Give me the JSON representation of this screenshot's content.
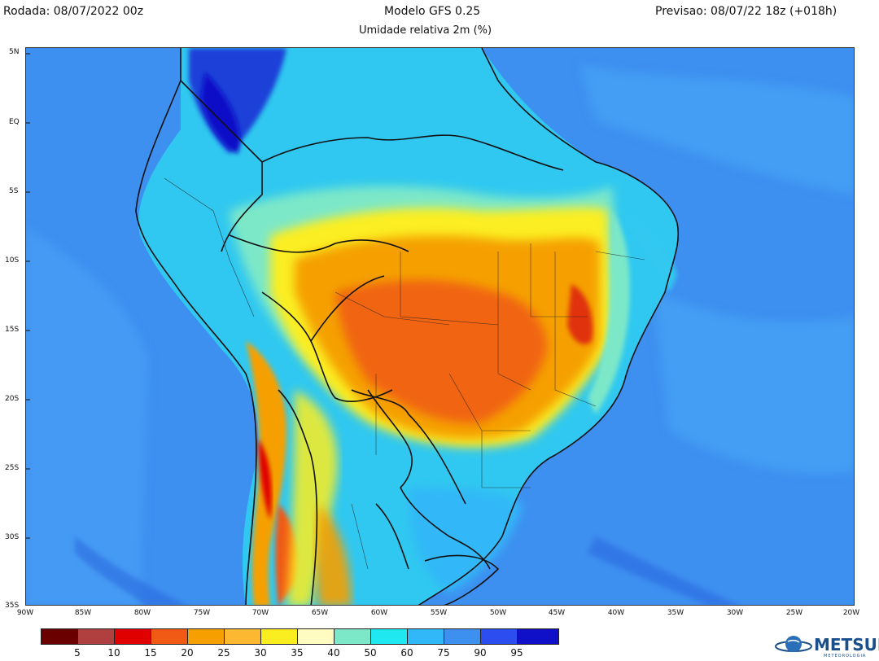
{
  "header": {
    "run": "Rodada: 08/07/2022 00z",
    "model": "Modelo GFS 0.25",
    "variable": "Umidade relativa 2m (%)",
    "forecast": "Previsao: 08/07/22 18z (+018h)"
  },
  "map": {
    "lat_ticks": [
      "5N",
      "EQ",
      "5S",
      "10S",
      "15S",
      "20S",
      "25S",
      "30S",
      "35S"
    ],
    "lon_ticks": [
      "90W",
      "85W",
      "80W",
      "75W",
      "70W",
      "65W",
      "60W",
      "55W",
      "50W",
      "45W",
      "40W",
      "35W",
      "30W",
      "25W",
      "20W"
    ]
  },
  "colorbar": {
    "colors": [
      "#6b0000",
      "#b04040",
      "#e00000",
      "#f05a14",
      "#f5a000",
      "#fbb830",
      "#fbee20",
      "#fefcc0",
      "#7de8c8",
      "#20e8f0",
      "#30b8f8",
      "#3d8ff0",
      "#2c4ef0",
      "#1010c8"
    ],
    "labels": [
      "5",
      "10",
      "15",
      "20",
      "25",
      "30",
      "35",
      "40",
      "50",
      "60",
      "75",
      "90",
      "95"
    ]
  },
  "logo": {
    "name": "METSUL",
    "tagline": "METEOROLOGIA"
  }
}
